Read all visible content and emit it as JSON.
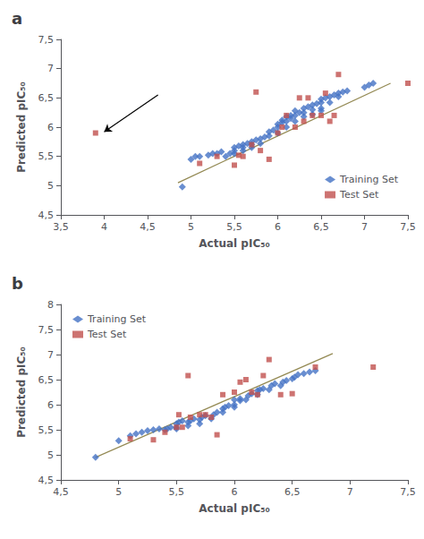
{
  "chart_data": [
    {
      "type": "scatter",
      "title": "a",
      "xlabel": "Actual pIC₅₀",
      "ylabel": "Predicted pIC₅₀",
      "xlim": [
        3.5,
        7.5
      ],
      "ylim": [
        4.5,
        7.5
      ],
      "xticks": [
        {
          "value": 3.5,
          "label": "3,5"
        },
        4,
        {
          "value": 4.5,
          "label": "4,5"
        },
        5,
        {
          "value": 5.5,
          "label": "5,5"
        },
        6,
        {
          "value": 6.5,
          "label": "6,5"
        },
        7,
        {
          "value": 7.5,
          "label": "7,5"
        }
      ],
      "yticks": [
        {
          "value": 4.5,
          "label": "4,5"
        },
        5,
        {
          "value": 5.5,
          "label": "5,5"
        },
        6,
        {
          "value": 6.5,
          "label": "6,5"
        },
        7,
        {
          "value": 7.5,
          "label": "7,5"
        }
      ],
      "grid": false,
      "legend": "lower right",
      "series": [
        {
          "name": "Training Set",
          "type": "scatter",
          "marker": "diamond",
          "color": "#4472C4",
          "x": [
            4.9,
            5.0,
            5.05,
            5.1,
            5.2,
            5.25,
            5.3,
            5.35,
            5.4,
            5.45,
            5.5,
            5.5,
            5.5,
            5.55,
            5.6,
            5.6,
            5.6,
            5.65,
            5.7,
            5.7,
            5.7,
            5.75,
            5.8,
            5.8,
            5.85,
            5.9,
            5.9,
            5.95,
            6.0,
            6.0,
            6.0,
            6.05,
            6.05,
            6.1,
            6.1,
            6.1,
            6.15,
            6.15,
            6.2,
            6.2,
            6.2,
            6.25,
            6.3,
            6.3,
            6.3,
            6.35,
            6.4,
            6.4,
            6.4,
            6.45,
            6.5,
            6.5,
            6.5,
            6.5,
            6.55,
            6.6,
            6.6,
            6.65,
            6.7,
            6.7,
            6.75,
            6.8,
            7.0,
            7.05,
            7.1
          ],
          "values": [
            4.98,
            5.45,
            5.5,
            5.5,
            5.52,
            5.55,
            5.55,
            5.58,
            5.5,
            5.55,
            5.55,
            5.6,
            5.65,
            5.68,
            5.6,
            5.65,
            5.7,
            5.72,
            5.65,
            5.7,
            5.75,
            5.78,
            5.72,
            5.8,
            5.83,
            5.85,
            5.92,
            5.95,
            5.9,
            6.0,
            6.05,
            6.08,
            6.12,
            6.0,
            6.1,
            6.18,
            6.15,
            6.2,
            6.1,
            6.2,
            6.28,
            6.25,
            6.18,
            6.25,
            6.32,
            6.35,
            6.22,
            6.3,
            6.38,
            6.4,
            6.28,
            6.32,
            6.42,
            6.48,
            6.5,
            6.42,
            6.52,
            6.55,
            6.52,
            6.58,
            6.6,
            6.62,
            6.68,
            6.72,
            6.75
          ]
        },
        {
          "name": "Test Set",
          "type": "scatter",
          "marker": "square",
          "color": "#C0504D",
          "x": [
            3.9,
            5.1,
            5.3,
            5.5,
            5.55,
            5.6,
            5.7,
            5.75,
            5.8,
            5.9,
            6.0,
            6.05,
            6.1,
            6.2,
            6.25,
            6.3,
            6.35,
            6.4,
            6.5,
            6.55,
            6.6,
            6.65,
            6.7,
            7.5
          ],
          "values": [
            5.9,
            5.38,
            5.5,
            5.35,
            5.52,
            5.5,
            5.7,
            6.6,
            5.6,
            5.45,
            5.9,
            6.0,
            6.2,
            6.0,
            6.5,
            6.1,
            6.5,
            6.2,
            6.2,
            6.58,
            6.1,
            6.2,
            6.9,
            6.75
          ]
        },
        {
          "type": "line",
          "line_style": "solid",
          "color": "#948A54",
          "x": [
            4.85,
            7.3
          ],
          "values": [
            5.05,
            6.75
          ]
        }
      ],
      "annotations": [
        {
          "from": [
            4.62,
            6.55
          ],
          "to": [
            4.0,
            5.92
          ]
        }
      ]
    },
    {
      "type": "scatter",
      "title": "b",
      "xlabel": "Actual pIC₅₀",
      "ylabel": "Predicted pIC₅₀",
      "xlim": [
        4.5,
        7.5
      ],
      "ylim": [
        4.5,
        8.0
      ],
      "xticks": [
        {
          "value": 4.5,
          "label": "4,5"
        },
        5,
        {
          "value": 5.5,
          "label": "5,5"
        },
        6,
        {
          "value": 6.5,
          "label": "6,5"
        },
        7,
        {
          "value": 7.5,
          "label": "7,5"
        }
      ],
      "yticks": [
        {
          "value": 4.5,
          "label": "4,5"
        },
        5,
        {
          "value": 5.5,
          "label": "5,5"
        },
        6,
        {
          "value": 6.5,
          "label": "6,5"
        },
        7,
        {
          "value": 7.5,
          "label": "7,5"
        },
        8
      ],
      "grid": false,
      "legend": "upper left",
      "series": [
        {
          "name": "Training Set",
          "type": "scatter",
          "marker": "diamond",
          "color": "#4472C4",
          "x": [
            4.8,
            5.0,
            5.1,
            5.15,
            5.2,
            5.25,
            5.3,
            5.35,
            5.4,
            5.42,
            5.45,
            5.5,
            5.5,
            5.5,
            5.52,
            5.55,
            5.6,
            5.6,
            5.62,
            5.65,
            5.7,
            5.7,
            5.72,
            5.75,
            5.8,
            5.82,
            5.85,
            5.9,
            5.9,
            5.92,
            5.95,
            6.0,
            6.0,
            6.0,
            6.05,
            6.05,
            6.1,
            6.12,
            6.15,
            6.2,
            6.2,
            6.22,
            6.25,
            6.3,
            6.32,
            6.35,
            6.4,
            6.42,
            6.45,
            6.5,
            6.52,
            6.55,
            6.6,
            6.65,
            6.7
          ],
          "values": [
            4.95,
            5.28,
            5.38,
            5.42,
            5.45,
            5.48,
            5.5,
            5.52,
            5.5,
            5.52,
            5.55,
            5.52,
            5.55,
            5.62,
            5.65,
            5.68,
            5.58,
            5.65,
            5.68,
            5.72,
            5.62,
            5.7,
            5.75,
            5.78,
            5.72,
            5.8,
            5.85,
            5.85,
            5.92,
            5.95,
            5.98,
            5.95,
            6.0,
            6.1,
            6.08,
            6.12,
            6.1,
            6.18,
            6.22,
            6.2,
            6.28,
            6.3,
            6.32,
            6.3,
            6.38,
            6.42,
            6.38,
            6.45,
            6.48,
            6.52,
            6.55,
            6.6,
            6.62,
            6.65,
            6.68
          ]
        },
        {
          "name": "Test Set",
          "type": "scatter",
          "marker": "square",
          "color": "#C0504D",
          "x": [
            5.1,
            5.3,
            5.4,
            5.5,
            5.52,
            5.55,
            5.6,
            5.62,
            5.7,
            5.75,
            5.8,
            5.85,
            5.9,
            6.0,
            6.05,
            6.1,
            6.15,
            6.2,
            6.25,
            6.3,
            6.4,
            6.5,
            6.7,
            7.2
          ],
          "values": [
            5.32,
            5.3,
            5.45,
            5.55,
            5.8,
            5.55,
            6.58,
            5.75,
            5.8,
            5.8,
            5.75,
            5.4,
            6.2,
            6.25,
            6.45,
            6.5,
            6.25,
            6.2,
            6.58,
            6.9,
            6.2,
            6.22,
            6.75,
            6.75
          ]
        },
        {
          "type": "line",
          "line_style": "solid",
          "color": "#948A54",
          "x": [
            4.8,
            6.85
          ],
          "values": [
            4.95,
            7.02
          ]
        }
      ]
    }
  ]
}
